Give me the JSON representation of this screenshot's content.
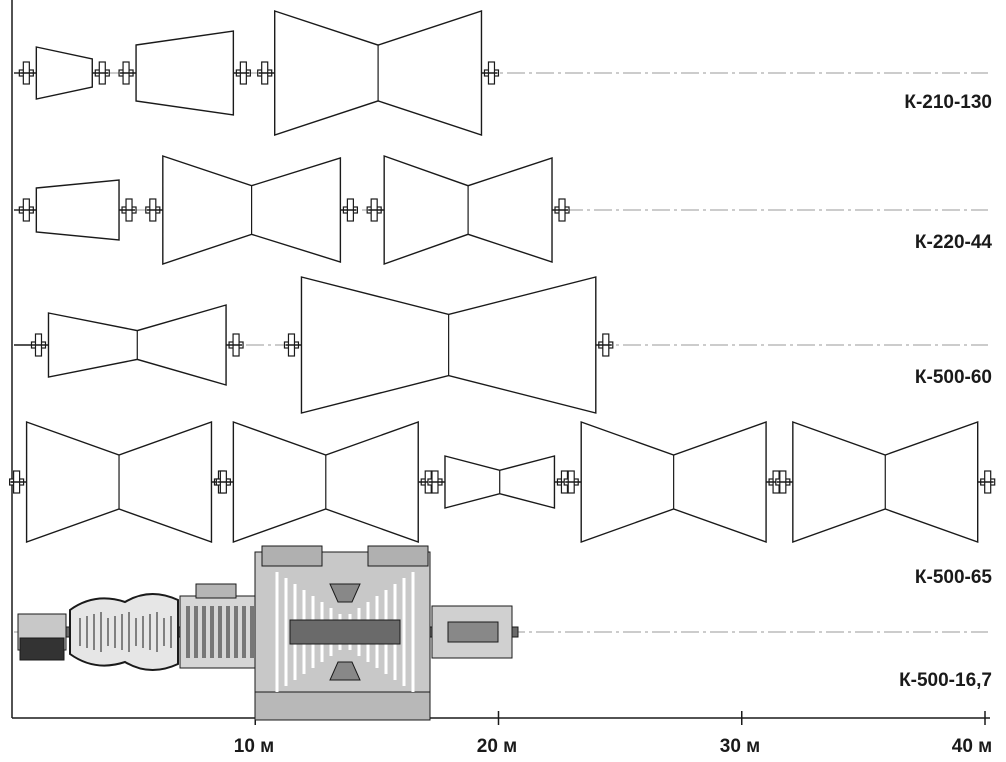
{
  "axis": {
    "unit": "м",
    "min": 0,
    "max": 40,
    "ticks": [
      {
        "value": 10,
        "label": "10 м"
      },
      {
        "value": 20,
        "label": "20 м"
      },
      {
        "value": 30,
        "label": "30 м"
      },
      {
        "value": 40,
        "label": "40 м"
      }
    ]
  },
  "turbines": [
    {
      "model": "К-210-130",
      "cylinders": [
        {
          "type": "single-flow",
          "start_m": 1.0,
          "end_m": 3.3
        },
        {
          "type": "single-flow",
          "start_m": 5.1,
          "end_m": 9.1
        },
        {
          "type": "double-flow",
          "start_m": 10.8,
          "end_m": 19.3
        }
      ]
    },
    {
      "model": "К-220-44",
      "cylinders": [
        {
          "type": "single-flow",
          "start_m": 1.0,
          "end_m": 4.4
        },
        {
          "type": "double-flow",
          "start_m": 6.2,
          "end_m": 13.5
        },
        {
          "type": "double-flow",
          "start_m": 15.3,
          "end_m": 22.2
        }
      ]
    },
    {
      "model": "К-500-60",
      "cylinders": [
        {
          "type": "double-flow",
          "start_m": 1.5,
          "end_m": 8.8
        },
        {
          "type": "double-flow",
          "start_m": 11.9,
          "end_m": 24.0
        }
      ]
    },
    {
      "model": "К-500-65",
      "cylinders": [
        {
          "type": "double-flow",
          "start_m": 0.6,
          "end_m": 8.2
        },
        {
          "type": "double-flow",
          "start_m": 9.1,
          "end_m": 16.7
        },
        {
          "type": "double-flow",
          "start_m": 17.8,
          "end_m": 22.3
        },
        {
          "type": "double-flow",
          "start_m": 23.4,
          "end_m": 31.0
        },
        {
          "type": "double-flow",
          "start_m": 32.1,
          "end_m": 39.7
        }
      ]
    },
    {
      "model": "К-500-16,7",
      "cylinders": []
    }
  ],
  "colors": {
    "outline": "#1a1a1a",
    "centerline": "#9a9a9a",
    "axis": "#1a1a1a",
    "cutaway_fill": "#c8c8c8",
    "cutaway_dark": "#6a6a6a"
  }
}
